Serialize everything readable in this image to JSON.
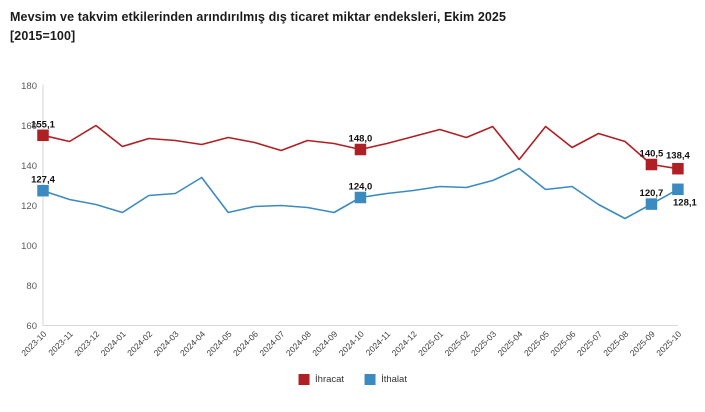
{
  "title": {
    "line1": "Mevsim ve takvim etkilerinden arındırılmış dış ticaret miktar endeksleri, Ekim 2025",
    "line2": "[2015=100]"
  },
  "chart_data": {
    "type": "line",
    "title": "Mevsim ve takvim etkilerinden arındırılmış dış ticaret miktar endeksleri, Ekim 2025 [2015=100]",
    "categories": [
      "2023-10",
      "2023-11",
      "2023-12",
      "2024-01",
      "2024-02",
      "2024-03",
      "2024-04",
      "2024-05",
      "2024-06",
      "2024-07",
      "2024-08",
      "2024-09",
      "2024-10",
      "2024-11",
      "2024-12",
      "2025-01",
      "2025-02",
      "2025-03",
      "2025-04",
      "2025-05",
      "2025-06",
      "2025-07",
      "2025-08",
      "2025-09",
      "2025-10"
    ],
    "series": [
      {
        "name": "İhracat",
        "color": "#b01f24",
        "values": [
          155.1,
          152.0,
          160.0,
          149.5,
          153.5,
          152.5,
          150.5,
          154.0,
          151.5,
          147.5,
          152.5,
          151.0,
          148.0,
          151.0,
          154.5,
          158.0,
          154.0,
          159.5,
          143.0,
          159.5,
          149.0,
          156.0,
          152.0,
          140.5,
          138.4
        ],
        "point_labels": [
          {
            "index": 0,
            "text": "155,1",
            "placement": "above"
          },
          {
            "index": 12,
            "text": "148,0",
            "placement": "above"
          },
          {
            "index": 23,
            "text": "140,5",
            "placement": "above"
          },
          {
            "index": 24,
            "text": "138,4",
            "placement": "above-high"
          }
        ]
      },
      {
        "name": "İthalat",
        "color": "#3c8bc0",
        "values": [
          127.4,
          123.0,
          120.5,
          116.5,
          125.0,
          126.0,
          134.0,
          116.5,
          119.5,
          120.0,
          119.0,
          116.5,
          124.0,
          126.0,
          127.5,
          129.5,
          129.0,
          132.5,
          138.5,
          128.0,
          129.5,
          120.5,
          113.5,
          120.7,
          128.1
        ],
        "point_labels": [
          {
            "index": 0,
            "text": "127,4",
            "placement": "above"
          },
          {
            "index": 12,
            "text": "124,0",
            "placement": "above"
          },
          {
            "index": 23,
            "text": "120,7",
            "placement": "above"
          },
          {
            "index": 24,
            "text": "128,1",
            "placement": "below"
          }
        ]
      }
    ],
    "ylim": [
      60,
      180
    ],
    "yticks": [
      180,
      160,
      140,
      120,
      100,
      80,
      60
    ],
    "grid": false,
    "legend_position": "bottom"
  },
  "legend": {
    "items": [
      {
        "label": "İhracat",
        "color": "#b01f24"
      },
      {
        "label": "İthalat",
        "color": "#3c8bc0"
      }
    ]
  },
  "style_colors": {
    "axis_line": "#d6d6d6",
    "y_tick_text": "#595959",
    "x_tick_text": "#404040",
    "data_label": "#111111",
    "title_text": "#1b1b1b"
  }
}
